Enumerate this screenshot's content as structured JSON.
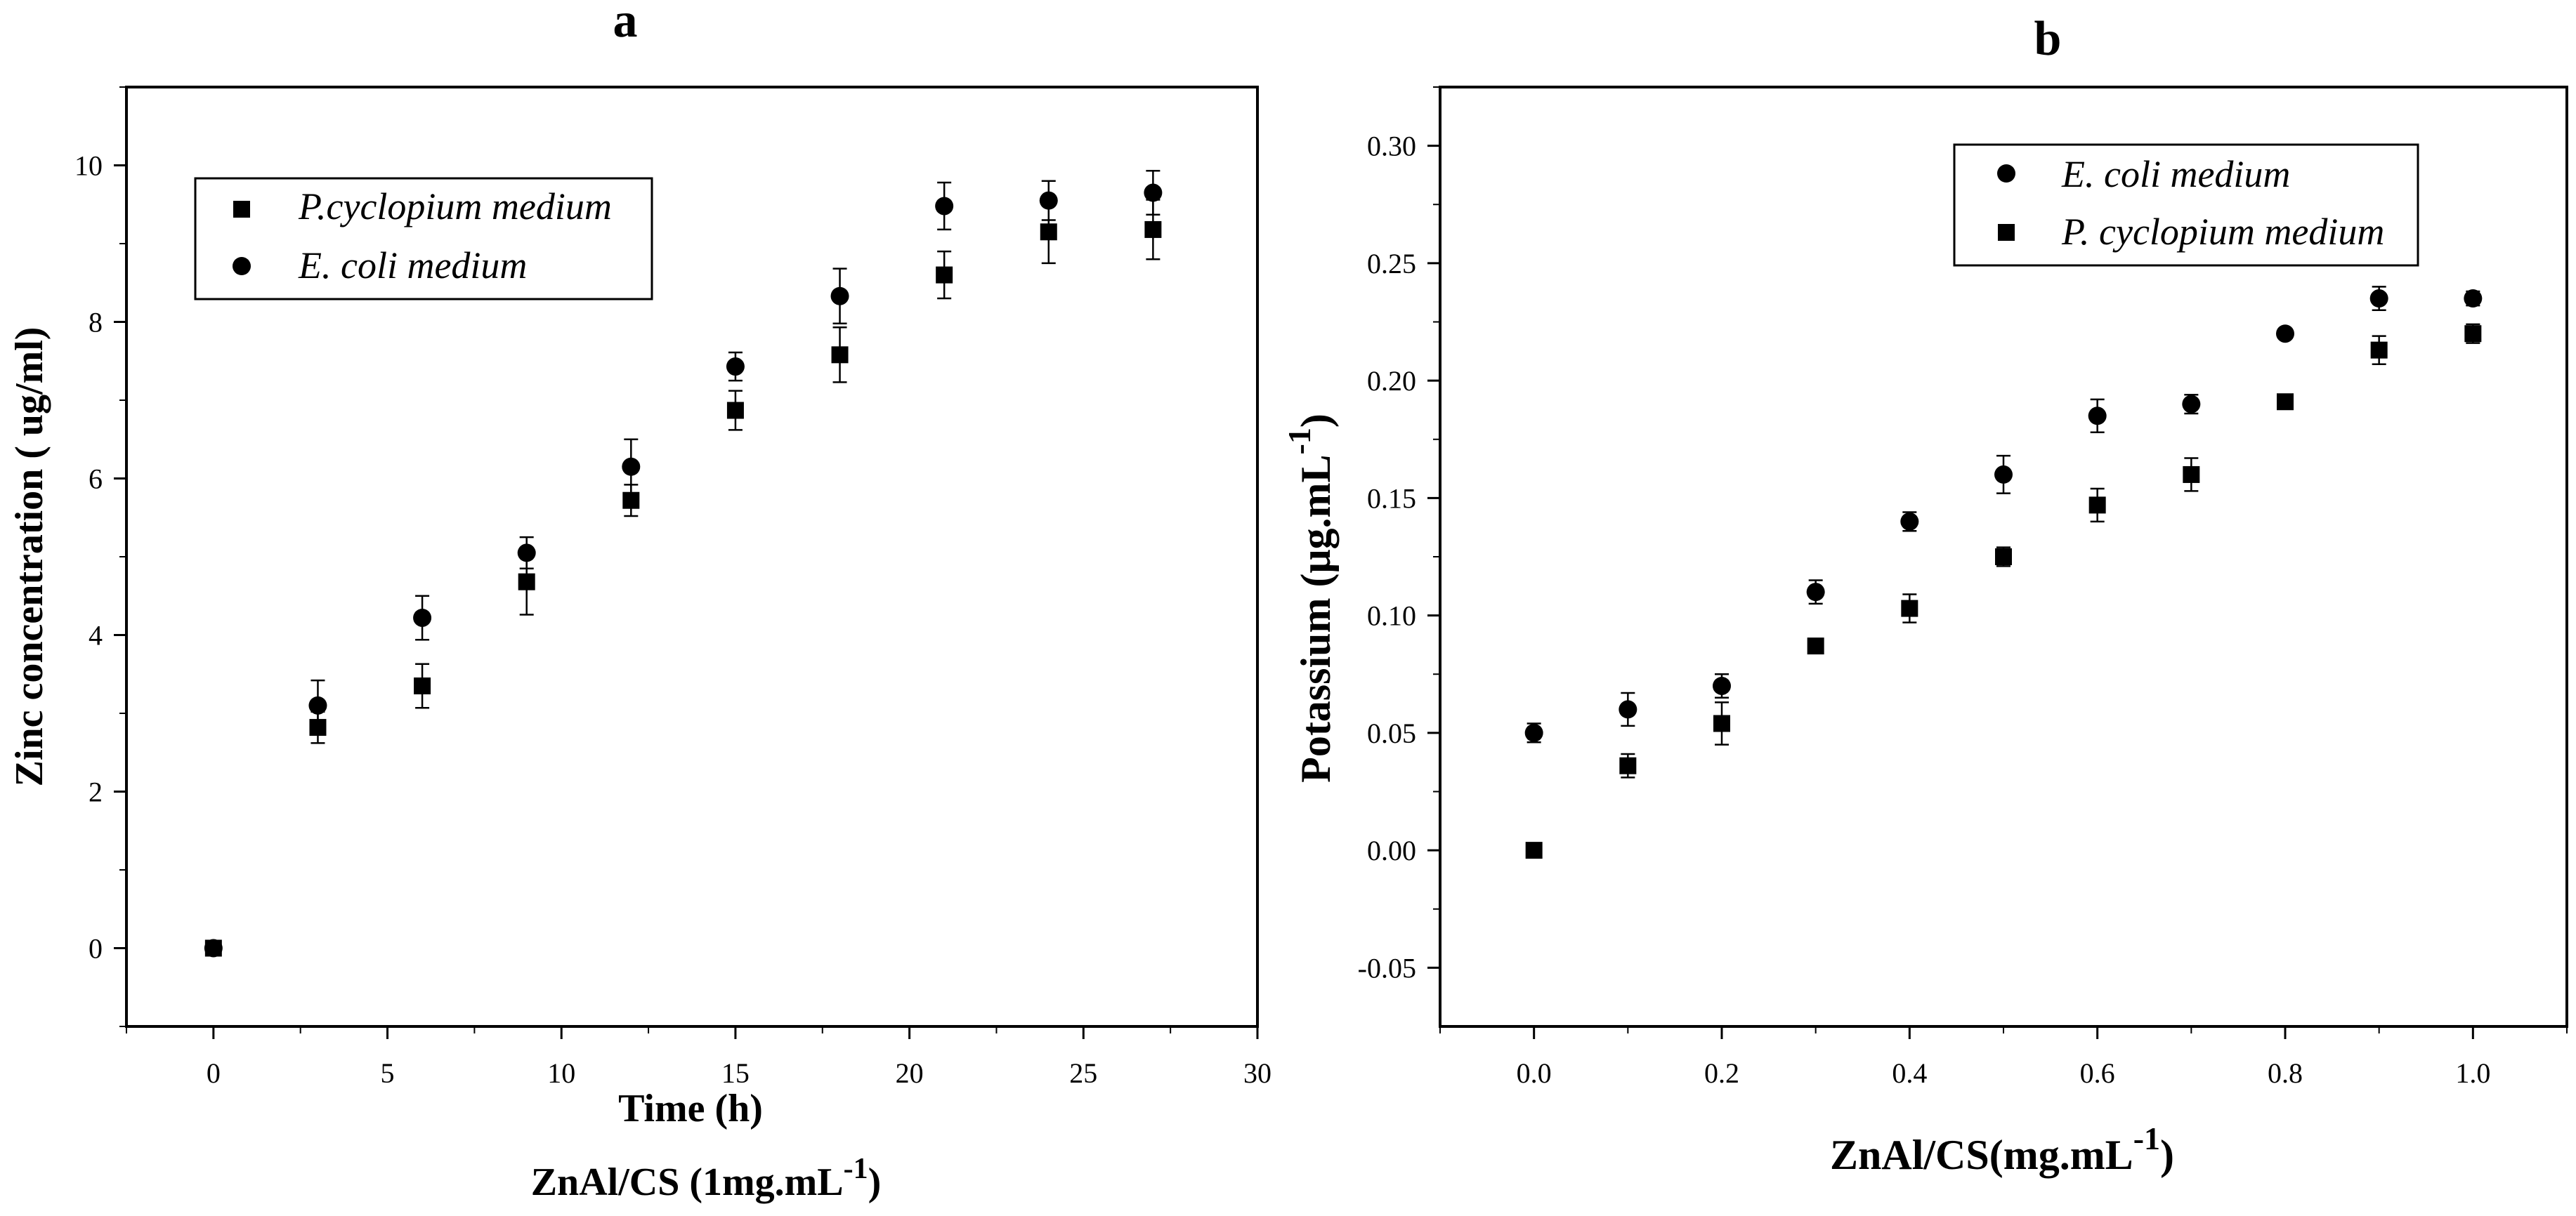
{
  "panels": [
    {
      "panel_label": "a",
      "xlabel": "Time (h)",
      "sub_xlabel_main": "ZnAl/CS (1mg.mL",
      "sub_xlabel_sup": "-1",
      "sub_xlabel_tail": ")",
      "ylabel": "Zinc concentration ( ug/ml)",
      "x_tick_labels": [
        "0",
        "5",
        "10",
        "15",
        "20",
        "25",
        "30"
      ],
      "y_tick_labels": [
        "0",
        "2",
        "4",
        "6",
        "8",
        "10"
      ],
      "legend": [
        {
          "marker": "square",
          "label": "P.cyclopium medium"
        },
        {
          "marker": "circle",
          "label": "E. coli medium"
        }
      ]
    },
    {
      "panel_label": "b",
      "xlabel_main": "ZnAl/CS(mg.mL",
      "xlabel_sup": "-1",
      "xlabel_tail": ")",
      "ylabel_main": "Potassium (μg.mL",
      "ylabel_sup": "-1",
      "ylabel_tail": ")",
      "x_tick_labels": [
        "0.0",
        "0.2",
        "0.4",
        "0.6",
        "0.8",
        "1.0"
      ],
      "y_tick_labels": [
        "-0.05",
        "0.00",
        "0.05",
        "0.10",
        "0.15",
        "0.20",
        "0.25",
        "0.30"
      ],
      "legend": [
        {
          "marker": "circle",
          "label": "E. coli medium"
        },
        {
          "marker": "square",
          "label": "P. cyclopium medium"
        }
      ]
    }
  ],
  "chart_data": [
    {
      "type": "scatter",
      "xlim": [
        -2.5,
        30
      ],
      "ylim": [
        -1,
        11
      ],
      "x_ticks": [
        0,
        5,
        10,
        15,
        20,
        25,
        30
      ],
      "y_ticks": [
        0,
        2,
        4,
        6,
        8,
        10
      ],
      "grid": false,
      "legend_position": "top-left",
      "series": [
        {
          "name": "P.cyclopium medium",
          "marker": "square",
          "x": [
            0,
            3,
            6,
            9,
            12,
            15,
            18,
            21,
            24,
            27
          ],
          "y": [
            0,
            2.82,
            3.35,
            4.68,
            5.72,
            6.87,
            7.58,
            8.6,
            9.15,
            9.18
          ],
          "error": [
            0,
            0.2,
            0.28,
            0.42,
            0.2,
            0.25,
            0.35,
            0.3,
            0.4,
            0.38
          ]
        },
        {
          "name": "E. coli medium",
          "marker": "circle",
          "x": [
            0,
            3,
            6,
            9,
            12,
            15,
            18,
            21,
            24,
            27
          ],
          "y": [
            0,
            3.1,
            4.22,
            5.05,
            6.15,
            7.43,
            8.33,
            9.48,
            9.55,
            9.65
          ],
          "error": [
            0,
            0.32,
            0.28,
            0.2,
            0.35,
            0.18,
            0.35,
            0.3,
            0.25,
            0.28
          ]
        }
      ]
    },
    {
      "type": "scatter",
      "xlim": [
        -0.1,
        1.1
      ],
      "ylim": [
        -0.075,
        0.325
      ],
      "x_ticks": [
        0.0,
        0.2,
        0.4,
        0.6,
        0.8,
        1.0
      ],
      "y_ticks": [
        -0.05,
        0.0,
        0.05,
        0.1,
        0.15,
        0.2,
        0.25,
        0.3
      ],
      "grid": false,
      "legend_position": "top-right",
      "series": [
        {
          "name": "E. coli medium",
          "marker": "circle",
          "x": [
            0.0,
            0.1,
            0.2,
            0.3,
            0.4,
            0.5,
            0.6,
            0.7,
            0.8,
            0.9,
            1.0
          ],
          "y": [
            0.05,
            0.06,
            0.07,
            0.11,
            0.14,
            0.16,
            0.185,
            0.19,
            0.22,
            0.235,
            0.235
          ],
          "error": [
            0.004,
            0.007,
            0.005,
            0.005,
            0.004,
            0.008,
            0.007,
            0.004,
            0.002,
            0.005,
            0.003
          ]
        },
        {
          "name": "P. cyclopium medium",
          "marker": "square",
          "x": [
            0.0,
            0.1,
            0.2,
            0.3,
            0.4,
            0.5,
            0.6,
            0.7,
            0.8,
            0.9,
            1.0
          ],
          "y": [
            0.0,
            0.036,
            0.054,
            0.087,
            0.103,
            0.125,
            0.147,
            0.16,
            0.191,
            0.213,
            0.22
          ],
          "error": [
            0.0,
            0.005,
            0.009,
            0.002,
            0.006,
            0.004,
            0.007,
            0.007,
            0.002,
            0.006,
            0.004
          ]
        }
      ]
    }
  ]
}
